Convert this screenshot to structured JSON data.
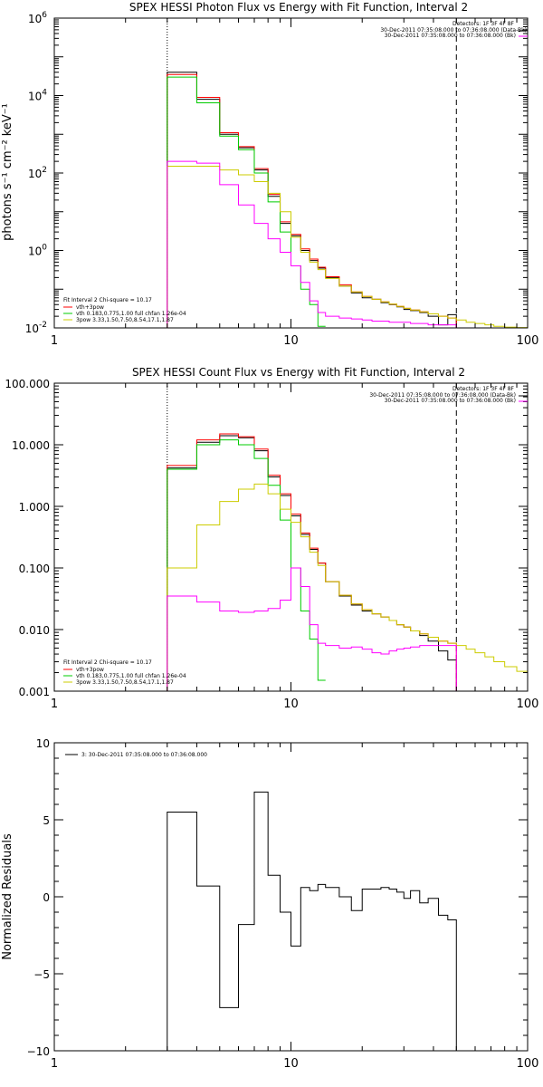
{
  "chart_data": [
    {
      "type": "line",
      "title": "SPEX HESSI Photon Flux vs Energy with Fit Function, Interval 2",
      "ylabel": "photons s⁻¹ cm⁻² keV⁻¹",
      "xlabel": "",
      "xscale": "log",
      "yscale": "log",
      "xlim": [
        1,
        100
      ],
      "ylim": [
        0.01,
        1000000
      ],
      "x_ticks": [
        "1",
        "10",
        "100"
      ],
      "y_ticks": [
        {
          "value": 0.01,
          "base": "10",
          "exp": "-2"
        },
        {
          "value": 1,
          "base": "10",
          "exp": "0"
        },
        {
          "value": 100,
          "base": "10",
          "exp": "2"
        },
        {
          "value": 10000,
          "base": "10",
          "exp": "4"
        },
        {
          "value": 1000000,
          "base": "10",
          "exp": "6"
        }
      ],
      "vlines": [
        {
          "x": 3,
          "style": "dotted"
        },
        {
          "x": 50,
          "style": "dashed"
        }
      ],
      "legend_top": {
        "header": "Detectors: 1F 3F 4F 8F",
        "entries": [
          {
            "text": "30-Dec-2011 07:35:08.000 to 07:36:08.000 (Data-Bk)",
            "color": "#000000"
          },
          {
            "text": "30-Dec-2011 07:35:08.000 to 07:36:08.000 (Bk)",
            "color": "#ff00ff"
          }
        ]
      },
      "legend_bottom": {
        "header": "Fit Interval 2   Chi-square = 10.17",
        "entries": [
          {
            "text": "vth+3pow",
            "color": "#ff0000"
          },
          {
            "text": "vth 0.183,0.775,1.00  full chfan 1.26e-04",
            "color": "#00cc00"
          },
          {
            "text": "3pow 3.33,1.50,7.50,8.54,17.1,1.87",
            "color": "#cccc00"
          }
        ]
      },
      "bin_edges": [
        3,
        4,
        5,
        6,
        7,
        8,
        9,
        10,
        11,
        12,
        13,
        14,
        16,
        18,
        20,
        22,
        24,
        26,
        28,
        30,
        32,
        35,
        38,
        42,
        46,
        50
      ],
      "series": [
        {
          "color": "#000000",
          "bin_edges": [
            3,
            4,
            5,
            6,
            7,
            8,
            9,
            10,
            11,
            12,
            13,
            14,
            16,
            18,
            20,
            22,
            24,
            26,
            28,
            30,
            32,
            35,
            38,
            42,
            46,
            50
          ],
          "values": [
            40000,
            8000,
            1000,
            450,
            120,
            25,
            5,
            2.4,
            1.0,
            0.55,
            0.35,
            0.2,
            0.12,
            0.08,
            0.06,
            0.055,
            0.045,
            0.04,
            0.035,
            0.03,
            0.028,
            0.025,
            0.02,
            0.012,
            0.022
          ]
        },
        {
          "color": "#ff0000",
          "bin_edges": [
            3,
            4,
            5,
            6,
            7,
            8,
            9,
            10,
            11,
            12,
            13,
            14,
            16,
            18,
            20,
            22,
            24,
            26,
            28,
            30,
            32,
            35,
            38,
            42,
            46,
            50
          ],
          "values": [
            35000,
            9000,
            1100,
            480,
            130,
            28,
            5.5,
            2.6,
            1.1,
            0.6,
            0.37,
            0.21,
            0.13,
            0.085,
            0.065,
            0.055,
            0.047,
            0.041,
            0.036,
            0.032,
            0.029,
            0.026,
            0.023,
            0.02,
            0.018
          ]
        },
        {
          "color": "#00cc00",
          "bin_edges": [
            3,
            4,
            5,
            6,
            7,
            8,
            9,
            10,
            11,
            12,
            13,
            14
          ],
          "values": [
            30000,
            6500,
            900,
            400,
            100,
            18,
            3,
            0.4,
            0.1,
            0.04,
            0.011
          ]
        },
        {
          "color": "#cccc00",
          "bin_edges": [
            3,
            4,
            5,
            6,
            7,
            8,
            9,
            10,
            11,
            12,
            13,
            14,
            16,
            18,
            20,
            22,
            24,
            26,
            28,
            30,
            32,
            35,
            38,
            42,
            46,
            50,
            55,
            60,
            66,
            72,
            80,
            90,
            100
          ],
          "values": [
            150,
            150,
            120,
            90,
            60,
            30,
            10,
            2.2,
            0.9,
            0.5,
            0.32,
            0.19,
            0.12,
            0.085,
            0.065,
            0.055,
            0.047,
            0.041,
            0.036,
            0.032,
            0.029,
            0.026,
            0.023,
            0.02,
            0.018,
            0.016,
            0.014,
            0.013,
            0.012,
            0.011,
            0.0105,
            0.0102
          ]
        },
        {
          "color": "#ff00ff",
          "bin_edges": [
            3,
            4,
            5,
            6,
            7,
            8,
            9,
            10,
            11,
            12,
            13,
            14,
            16,
            18,
            20,
            22,
            24,
            26,
            28,
            30,
            32,
            35,
            38,
            42,
            46,
            50
          ],
          "values": [
            200,
            180,
            50,
            15,
            5,
            2,
            0.9,
            0.4,
            0.15,
            0.05,
            0.025,
            0.02,
            0.018,
            0.017,
            0.016,
            0.015,
            0.015,
            0.014,
            0.014,
            0.014,
            0.013,
            0.013,
            0.012,
            0.012,
            0.012
          ]
        }
      ]
    },
    {
      "type": "line",
      "title": "SPEX HESSI Count Flux vs Energy with Fit Function, Interval 2",
      "xlabel": "",
      "ylabel": "",
      "xscale": "log",
      "yscale": "log",
      "xlim": [
        1,
        100
      ],
      "ylim": [
        0.001,
        100
      ],
      "x_ticks": [
        "1",
        "10",
        "100"
      ],
      "y_ticks": [
        {
          "value": 0.001,
          "label": "0.001"
        },
        {
          "value": 0.01,
          "label": "0.010"
        },
        {
          "value": 0.1,
          "label": "0.100"
        },
        {
          "value": 1,
          "label": "1.000"
        },
        {
          "value": 10,
          "label": "10.000"
        },
        {
          "value": 100,
          "label": "100.000"
        }
      ],
      "vlines": [
        {
          "x": 3,
          "style": "dotted"
        },
        {
          "x": 50,
          "style": "dashed"
        }
      ],
      "legend_top": {
        "header": "Detectors: 1F 3F 4F 8F",
        "entries": [
          {
            "text": "30-Dec-2011 07:35:08.000 to 07:36:08.000 (Data-Bk)",
            "color": "#000000"
          },
          {
            "text": "30-Dec-2011 07:35:08.000 to 07:36:08.000 (Bk)",
            "color": "#ff00ff"
          }
        ]
      },
      "legend_bottom": {
        "header": "Fit Interval 2   Chi-square = 10.17",
        "entries": [
          {
            "text": "vth+3pow",
            "color": "#ff0000"
          },
          {
            "text": "vth 0.183,0.775,1.00  full chfan 1.26e-04",
            "color": "#00cc00"
          },
          {
            "text": "3pow 3.33,1.50,7.50,8.54,17.1,1.87",
            "color": "#cccc00"
          }
        ]
      },
      "series": [
        {
          "color": "#000000",
          "bin_edges": [
            3,
            4,
            5,
            6,
            7,
            8,
            9,
            10,
            11,
            12,
            13,
            14,
            16,
            18,
            20,
            22,
            24,
            26,
            28,
            30,
            32,
            35,
            38,
            42,
            46,
            50
          ],
          "values": [
            4.2,
            11,
            14,
            13,
            8,
            3,
            1.5,
            0.7,
            0.35,
            0.2,
            0.12,
            0.06,
            0.035,
            0.025,
            0.02,
            0.018,
            0.016,
            0.014,
            0.012,
            0.011,
            0.0095,
            0.008,
            0.0065,
            0.0045,
            0.0032
          ]
        },
        {
          "color": "#ff0000",
          "bin_edges": [
            3,
            4,
            5,
            6,
            7,
            8,
            9,
            10,
            11,
            12,
            13,
            14,
            16,
            18,
            20,
            22,
            24,
            26,
            28,
            30,
            32,
            35,
            38,
            42,
            46,
            50
          ],
          "values": [
            4.6,
            12,
            15,
            13.5,
            8.5,
            3.2,
            1.6,
            0.75,
            0.37,
            0.21,
            0.12,
            0.06,
            0.036,
            0.026,
            0.021,
            0.018,
            0.016,
            0.014,
            0.012,
            0.011,
            0.0095,
            0.0085,
            0.0075,
            0.0065,
            0.006
          ]
        },
        {
          "color": "#00cc00",
          "bin_edges": [
            3,
            4,
            5,
            6,
            7,
            8,
            9,
            10,
            11,
            12,
            13,
            14
          ],
          "values": [
            4.0,
            10,
            12,
            10,
            6,
            2.2,
            0.6,
            0.1,
            0.02,
            0.007,
            0.0015
          ]
        },
        {
          "color": "#cccc00",
          "bin_edges": [
            3,
            4,
            5,
            6,
            7,
            8,
            9,
            10,
            11,
            12,
            13,
            14,
            16,
            18,
            20,
            22,
            24,
            26,
            28,
            30,
            32,
            35,
            38,
            42,
            46,
            50,
            55,
            60,
            66,
            72,
            80,
            90,
            100
          ],
          "values": [
            0.1,
            0.5,
            1.2,
            1.9,
            2.3,
            1.6,
            0.9,
            0.55,
            0.32,
            0.18,
            0.11,
            0.06,
            0.036,
            0.026,
            0.021,
            0.018,
            0.016,
            0.014,
            0.012,
            0.011,
            0.0095,
            0.0085,
            0.0075,
            0.0065,
            0.006,
            0.0055,
            0.0048,
            0.0042,
            0.0036,
            0.003,
            0.0025,
            0.0021
          ]
        },
        {
          "color": "#ff00ff",
          "bin_edges": [
            3,
            4,
            5,
            6,
            7,
            8,
            9,
            10,
            11,
            12,
            13,
            14,
            16,
            18,
            20,
            22,
            24,
            26,
            28,
            30,
            32,
            35,
            38,
            42,
            46,
            50
          ],
          "values": [
            0.035,
            0.028,
            0.02,
            0.019,
            0.02,
            0.022,
            0.03,
            0.1,
            0.05,
            0.012,
            0.006,
            0.0055,
            0.005,
            0.0052,
            0.0048,
            0.0042,
            0.004,
            0.0045,
            0.0048,
            0.005,
            0.0052,
            0.0055,
            0.0055,
            0.0055,
            0.0055
          ]
        }
      ]
    },
    {
      "type": "line",
      "title": "",
      "xlabel": "",
      "ylabel": "Normalized Residuals",
      "xscale": "log",
      "yscale": "linear",
      "xlim": [
        1,
        100
      ],
      "ylim": [
        -10,
        10
      ],
      "x_ticks": [
        "1",
        "10",
        "100"
      ],
      "y_ticks": [
        {
          "value": -10,
          "label": "−10"
        },
        {
          "value": -5,
          "label": "−5"
        },
        {
          "value": 0,
          "label": "0"
        },
        {
          "value": 5,
          "label": "5"
        },
        {
          "value": 10,
          "label": "10"
        }
      ],
      "legend": {
        "entries": [
          {
            "text": "3: 30-Dec-2011 07:35:08.000 to 07:36:08.000",
            "color": "#000000"
          }
        ]
      },
      "series": [
        {
          "color": "#000000",
          "bin_edges": [
            3,
            4,
            5,
            6,
            7,
            8,
            9,
            10,
            11,
            12,
            13,
            14,
            16,
            18,
            20,
            22,
            24,
            26,
            28,
            30,
            32,
            35,
            38,
            42,
            46,
            50
          ],
          "values": [
            5.5,
            0.7,
            -7.2,
            -1.8,
            6.8,
            1.4,
            -1.0,
            -3.2,
            0.6,
            0.4,
            0.8,
            0.6,
            0.0,
            -0.9,
            0.5,
            0.5,
            0.6,
            0.5,
            0.3,
            -0.1,
            0.4,
            -0.4,
            -0.1,
            -1.2,
            -1.5
          ],
          "drop_start_to": -10,
          "drop_end_to": -10
        }
      ]
    }
  ]
}
